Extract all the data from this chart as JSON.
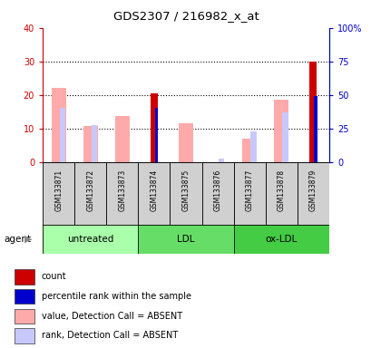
{
  "title": "GDS2307 / 216982_x_at",
  "samples": [
    "GSM133871",
    "GSM133872",
    "GSM133873",
    "GSM133874",
    "GSM133875",
    "GSM133876",
    "GSM133877",
    "GSM133878",
    "GSM133879"
  ],
  "group_labels": [
    "untreated",
    "LDL",
    "ox-LDL"
  ],
  "group_ranges": [
    [
      0,
      3
    ],
    [
      3,
      6
    ],
    [
      6,
      9
    ]
  ],
  "group_colors": [
    "#aaffaa",
    "#66dd66",
    "#44cc44"
  ],
  "red_bars": [
    0,
    0,
    0,
    20.5,
    0,
    0,
    0,
    0,
    30.0
  ],
  "blue_bars_pct": [
    0,
    0,
    0,
    40.0,
    0,
    0,
    0,
    0,
    49.0
  ],
  "pink_bars": [
    22.0,
    10.8,
    13.7,
    0,
    11.5,
    0,
    7.0,
    18.5,
    0
  ],
  "lavender_bars_pct": [
    40.0,
    27.5,
    0,
    0,
    0,
    2.5,
    23.0,
    37.0,
    0
  ],
  "ylim_left": [
    0,
    40
  ],
  "ylim_right": [
    0,
    100
  ],
  "yticks_left": [
    0,
    10,
    20,
    30,
    40
  ],
  "ytick_labels_left": [
    "0",
    "10",
    "20",
    "30",
    "40"
  ],
  "yticks_right": [
    0,
    25,
    50,
    75,
    100
  ],
  "ytick_labels_right": [
    "0",
    "25",
    "50",
    "75",
    "100%"
  ],
  "left_axis_color": "#cc0000",
  "right_axis_color": "#0000cc",
  "agent_label": "agent",
  "legend_items": [
    {
      "color": "#cc0000",
      "label": "count"
    },
    {
      "color": "#0000cc",
      "label": "percentile rank within the sample"
    },
    {
      "color": "#ffaaaa",
      "label": "value, Detection Call = ABSENT"
    },
    {
      "color": "#c8c8ff",
      "label": "rank, Detection Call = ABSENT"
    }
  ]
}
